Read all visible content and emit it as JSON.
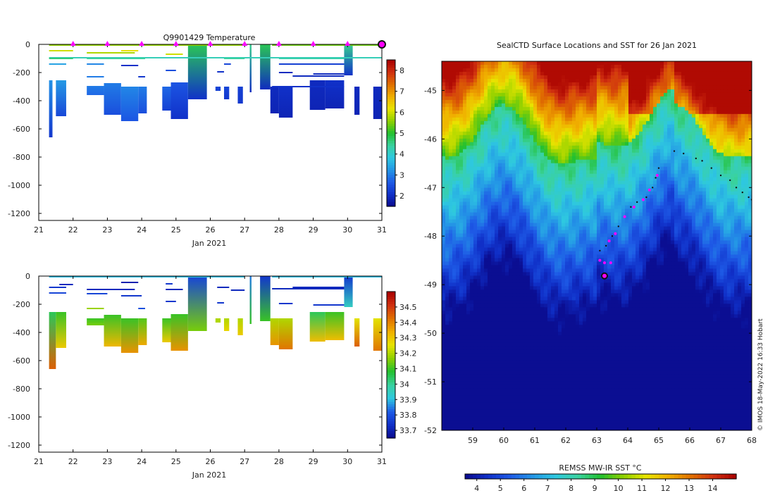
{
  "colors": {
    "temp_scale": [
      "#0a0a8c",
      "#1030c8",
      "#1e5ae6",
      "#2496e6",
      "#2ec8e0",
      "#3ad2a0",
      "#22c030",
      "#8ed000",
      "#e8e400",
      "#f0b000",
      "#e07000",
      "#d03010",
      "#a80000"
    ],
    "sal_scale": [
      "#0a0a8c",
      "#1030c8",
      "#1e5ae6",
      "#2ec8e0",
      "#3ad2a0",
      "#22c030",
      "#8ed000",
      "#e8e400",
      "#f0b000",
      "#e07000",
      "#d03010",
      "#a80000"
    ],
    "track_dots": "#111111",
    "surface_dots": "#ff00ff",
    "current_marker": "#111111"
  },
  "chart_data": [
    {
      "id": "temperature",
      "type": "heatmap",
      "title": "Q9901429  Temperature",
      "xlabel": "Jan 2021",
      "xlim": [
        21,
        31
      ],
      "ylim": [
        -1250,
        0
      ],
      "xticks": [
        21,
        22,
        23,
        24,
        25,
        26,
        27,
        28,
        29,
        30,
        31
      ],
      "yticks": [
        0,
        -200,
        -400,
        -600,
        -800,
        -1000,
        -1200
      ],
      "colorbar": {
        "min": 1.5,
        "max": 8.5,
        "ticks": [
          2,
          3,
          4,
          5,
          6,
          7,
          8
        ]
      },
      "markers_x": [
        22,
        23,
        24,
        25,
        26,
        27,
        28,
        29,
        30
      ],
      "current_x": 31,
      "profiles": [
        {
          "x0": 21.3,
          "x1": 21.4,
          "top": -255,
          "bottom": -660,
          "vtop": 3.2,
          "vbot": 2.2
        },
        {
          "x0": 21.5,
          "x1": 21.8,
          "top": -255,
          "bottom": -510,
          "vtop": 3.3,
          "vbot": 2.4
        },
        {
          "x0": 22.4,
          "x1": 22.9,
          "top": -295,
          "bottom": -360,
          "vtop": 3.0,
          "vbot": 2.8
        },
        {
          "x0": 22.9,
          "x1": 23.4,
          "top": -275,
          "bottom": -500,
          "vtop": 3.0,
          "vbot": 2.5
        },
        {
          "x0": 23.4,
          "x1": 23.9,
          "top": -300,
          "bottom": -545,
          "vtop": 3.1,
          "vbot": 2.6
        },
        {
          "x0": 23.9,
          "x1": 24.15,
          "top": -300,
          "bottom": -490,
          "vtop": 3.0,
          "vbot": 2.5
        },
        {
          "x0": 24.6,
          "x1": 24.85,
          "top": -300,
          "bottom": -470,
          "vtop": 2.8,
          "vbot": 2.3
        },
        {
          "x0": 24.85,
          "x1": 25.35,
          "top": -270,
          "bottom": -530,
          "vtop": 2.6,
          "vbot": 2.1
        },
        {
          "x0": 25.35,
          "x1": 25.9,
          "top": 0,
          "bottom": -390,
          "vtop": 4.8,
          "vbot": 2.1
        },
        {
          "x0": 26.15,
          "x1": 26.3,
          "top": -300,
          "bottom": -330,
          "vtop": 2.4,
          "vbot": 2.3
        },
        {
          "x0": 26.4,
          "x1": 26.55,
          "top": -300,
          "bottom": -390,
          "vtop": 2.4,
          "vbot": 2.2
        },
        {
          "x0": 26.8,
          "x1": 26.95,
          "top": -300,
          "bottom": -420,
          "vtop": 2.3,
          "vbot": 2.2
        },
        {
          "x0": 27.15,
          "x1": 27.2,
          "top": 0,
          "bottom": -340,
          "vtop": 4.5,
          "vbot": 2.0
        },
        {
          "x0": 27.45,
          "x1": 27.75,
          "top": 0,
          "bottom": -320,
          "vtop": 4.8,
          "vbot": 2.0
        },
        {
          "x0": 27.75,
          "x1": 28.0,
          "top": -300,
          "bottom": -490,
          "vtop": 2.0,
          "vbot": 1.9
        },
        {
          "x0": 28.0,
          "x1": 28.4,
          "top": -300,
          "bottom": -520,
          "vtop": 2.1,
          "vbot": 1.9
        },
        {
          "x0": 28.9,
          "x1": 29.35,
          "top": -255,
          "bottom": -465,
          "vtop": 2.0,
          "vbot": 1.9
        },
        {
          "x0": 29.35,
          "x1": 29.9,
          "top": -255,
          "bottom": -455,
          "vtop": 2.1,
          "vbot": 1.9
        },
        {
          "x0": 29.9,
          "x1": 30.15,
          "top": 0,
          "bottom": -220,
          "vtop": 4.5,
          "vbot": 2.1
        },
        {
          "x0": 30.2,
          "x1": 30.35,
          "top": -300,
          "bottom": -500,
          "vtop": 2.0,
          "vbot": 1.9
        },
        {
          "x0": 30.75,
          "x1": 31.0,
          "top": -300,
          "bottom": -530,
          "vtop": 2.0,
          "vbot": 1.9
        }
      ],
      "lines": [
        {
          "x0": 21.3,
          "x1": 27.0,
          "y": -5,
          "v": 5.6
        },
        {
          "x0": 27.8,
          "x1": 31.0,
          "y": -5,
          "v": 5.4
        },
        {
          "x0": 21.3,
          "x1": 22.0,
          "y": -45,
          "v": 6.0
        },
        {
          "x0": 22.4,
          "x1": 23.8,
          "y": -60,
          "v": 5.8
        },
        {
          "x0": 23.4,
          "x1": 23.9,
          "y": -45,
          "v": 6.2
        },
        {
          "x0": 24.7,
          "x1": 25.2,
          "y": -70,
          "v": 6.0
        },
        {
          "x0": 21.3,
          "x1": 31.0,
          "y": -95,
          "v": 4.2
        },
        {
          "x0": 21.3,
          "x1": 22.0,
          "y": -100,
          "v": 4.6
        },
        {
          "x0": 22.4,
          "x1": 24.1,
          "y": -100,
          "v": 4.4
        },
        {
          "x0": 26.4,
          "x1": 27.0,
          "y": -100,
          "v": 4.4
        },
        {
          "x0": 28.0,
          "x1": 29.9,
          "y": -100,
          "v": 4.3
        },
        {
          "x0": 21.3,
          "x1": 21.8,
          "y": -140,
          "v": 3.4
        },
        {
          "x0": 22.4,
          "x1": 22.9,
          "y": -140,
          "v": 3.1
        },
        {
          "x0": 23.4,
          "x1": 23.9,
          "y": -150,
          "v": 2.1
        },
        {
          "x0": 26.4,
          "x1": 26.6,
          "y": -140,
          "v": 2.4
        },
        {
          "x0": 28.0,
          "x1": 29.9,
          "y": -140,
          "v": 2.3
        },
        {
          "x0": 24.7,
          "x1": 25.0,
          "y": -185,
          "v": 2.5
        },
        {
          "x0": 26.2,
          "x1": 26.4,
          "y": -195,
          "v": 2.1
        },
        {
          "x0": 28.0,
          "x1": 28.4,
          "y": -200,
          "v": 2.0
        },
        {
          "x0": 29.0,
          "x1": 29.9,
          "y": -210,
          "v": 2.0
        },
        {
          "x0": 22.4,
          "x1": 22.9,
          "y": -230,
          "v": 3.0
        },
        {
          "x0": 23.9,
          "x1": 24.1,
          "y": -230,
          "v": 2.2
        },
        {
          "x0": 28.4,
          "x1": 29.9,
          "y": -225,
          "v": 2.0
        },
        {
          "x0": 27.8,
          "x1": 29.9,
          "y": -300,
          "v": 2.1
        }
      ]
    },
    {
      "id": "salinity",
      "type": "heatmap",
      "title": "",
      "xlabel": "Jan 2021",
      "xlim": [
        21,
        31
      ],
      "ylim": [
        -1250,
        0
      ],
      "xticks": [
        21,
        22,
        23,
        24,
        25,
        26,
        27,
        28,
        29,
        30,
        31
      ],
      "yticks": [
        0,
        -200,
        -400,
        -600,
        -800,
        -1000,
        -1200
      ],
      "colorbar": {
        "min": 33.65,
        "max": 34.6,
        "ticks": [
          33.7,
          33.8,
          33.9,
          34,
          34.1,
          34.2,
          34.3,
          34.4,
          34.5
        ]
      },
      "profiles": [
        {
          "x0": 21.3,
          "x1": 21.5,
          "top": -255,
          "bottom": -660,
          "vtop": 34.05,
          "vbot": 34.45
        },
        {
          "x0": 21.5,
          "x1": 21.8,
          "top": -255,
          "bottom": -510,
          "vtop": 34.1,
          "vbot": 34.3
        },
        {
          "x0": 22.4,
          "x1": 22.9,
          "top": -300,
          "bottom": -350,
          "vtop": 34.1,
          "vbot": 34.15
        },
        {
          "x0": 22.9,
          "x1": 23.4,
          "top": -275,
          "bottom": -500,
          "vtop": 34.1,
          "vbot": 34.33
        },
        {
          "x0": 23.4,
          "x1": 23.9,
          "top": -300,
          "bottom": -545,
          "vtop": 34.1,
          "vbot": 34.38
        },
        {
          "x0": 23.9,
          "x1": 24.15,
          "top": -300,
          "bottom": -490,
          "vtop": 34.12,
          "vbot": 34.35
        },
        {
          "x0": 24.6,
          "x1": 24.85,
          "top": -300,
          "bottom": -470,
          "vtop": 34.1,
          "vbot": 34.3
        },
        {
          "x0": 24.85,
          "x1": 25.35,
          "top": -270,
          "bottom": -530,
          "vtop": 34.1,
          "vbot": 34.38
        },
        {
          "x0": 25.35,
          "x1": 25.9,
          "top": 0,
          "bottom": -390,
          "vtop": 33.78,
          "vbot": 34.15
        },
        {
          "x0": 26.15,
          "x1": 26.3,
          "top": -300,
          "bottom": -330,
          "vtop": 34.2,
          "vbot": 34.2
        },
        {
          "x0": 26.4,
          "x1": 26.55,
          "top": -300,
          "bottom": -390,
          "vtop": 34.2,
          "vbot": 34.28
        },
        {
          "x0": 26.8,
          "x1": 26.95,
          "top": -300,
          "bottom": -420,
          "vtop": 34.2,
          "vbot": 34.3
        },
        {
          "x0": 27.15,
          "x1": 27.2,
          "top": 0,
          "bottom": -340,
          "vtop": 33.85,
          "vbot": 34.1
        },
        {
          "x0": 27.45,
          "x1": 27.75,
          "top": 0,
          "bottom": -320,
          "vtop": 33.75,
          "vbot": 34.1
        },
        {
          "x0": 27.75,
          "x1": 28.0,
          "top": -300,
          "bottom": -490,
          "vtop": 34.2,
          "vbot": 34.38
        },
        {
          "x0": 28.0,
          "x1": 28.4,
          "top": -300,
          "bottom": -520,
          "vtop": 34.2,
          "vbot": 34.42
        },
        {
          "x0": 28.9,
          "x1": 29.35,
          "top": -255,
          "bottom": -465,
          "vtop": 34.05,
          "vbot": 34.32
        },
        {
          "x0": 29.35,
          "x1": 29.9,
          "top": -255,
          "bottom": -455,
          "vtop": 34.1,
          "vbot": 34.32
        },
        {
          "x0": 29.9,
          "x1": 30.15,
          "top": 0,
          "bottom": -220,
          "vtop": 33.75,
          "vbot": 33.95
        },
        {
          "x0": 30.2,
          "x1": 30.35,
          "top": -300,
          "bottom": -500,
          "vtop": 34.25,
          "vbot": 34.45
        },
        {
          "x0": 30.75,
          "x1": 31.0,
          "top": -300,
          "bottom": -530,
          "vtop": 34.25,
          "vbot": 34.42
        }
      ],
      "lines": [
        {
          "x0": 21.3,
          "x1": 27.0,
          "y": -5,
          "v": 33.9
        },
        {
          "x0": 27.8,
          "x1": 31.0,
          "y": -5,
          "v": 33.9
        },
        {
          "x0": 21.3,
          "x1": 21.8,
          "y": -80,
          "v": 33.75
        },
        {
          "x0": 21.6,
          "x1": 22.0,
          "y": -60,
          "v": 33.72
        },
        {
          "x0": 22.4,
          "x1": 23.8,
          "y": -95,
          "v": 33.72
        },
        {
          "x0": 23.4,
          "x1": 23.9,
          "y": -45,
          "v": 33.7
        },
        {
          "x0": 24.7,
          "x1": 24.9,
          "y": -55,
          "v": 33.75
        },
        {
          "x0": 24.7,
          "x1": 25.2,
          "y": -95,
          "v": 33.72
        },
        {
          "x0": 26.2,
          "x1": 26.55,
          "y": -80,
          "v": 33.72
        },
        {
          "x0": 26.6,
          "x1": 27.0,
          "y": -100,
          "v": 33.72
        },
        {
          "x0": 27.8,
          "x1": 29.9,
          "y": -90,
          "v": 33.72
        },
        {
          "x0": 28.4,
          "x1": 29.9,
          "y": -80,
          "v": 33.72
        },
        {
          "x0": 21.3,
          "x1": 21.8,
          "y": -120,
          "v": 33.78
        },
        {
          "x0": 22.4,
          "x1": 23.0,
          "y": -125,
          "v": 33.78
        },
        {
          "x0": 23.4,
          "x1": 24.0,
          "y": -140,
          "v": 33.75
        },
        {
          "x0": 22.4,
          "x1": 22.9,
          "y": -230,
          "v": 34.18
        },
        {
          "x0": 24.7,
          "x1": 25.0,
          "y": -180,
          "v": 33.75
        },
        {
          "x0": 26.2,
          "x1": 26.4,
          "y": -190,
          "v": 33.75
        },
        {
          "x0": 28.0,
          "x1": 28.4,
          "y": -195,
          "v": 33.75
        },
        {
          "x0": 29.0,
          "x1": 29.9,
          "y": -205,
          "v": 33.75
        },
        {
          "x0": 23.9,
          "x1": 24.1,
          "y": -230,
          "v": 33.8
        }
      ]
    },
    {
      "id": "sst_map",
      "type": "heatmap",
      "title": "SealCTD Surface Locations and SST for 26 Jan 2021",
      "xlim": [
        58,
        68
      ],
      "ylim": [
        -52,
        -44.4
      ],
      "xticks": [
        59,
        60,
        61,
        62,
        63,
        64,
        65,
        66,
        67,
        68
      ],
      "yticks": [
        -45,
        -46,
        -47,
        -48,
        -49,
        -50,
        -51,
        -52
      ],
      "colorbar": {
        "label": "REMSS MW-IR SST °C",
        "min": 3.5,
        "max": 15,
        "ticks": [
          4,
          5,
          6,
          7,
          8,
          9,
          10,
          11,
          12,
          13,
          14
        ]
      },
      "credit": "© IMOS 18-May-2022 16:33 Hobart",
      "track": [
        [
          63.1,
          -48.3
        ],
        [
          63.3,
          -48.2
        ],
        [
          63.5,
          -48.0
        ],
        [
          63.7,
          -47.8
        ],
        [
          63.9,
          -47.6
        ],
        [
          64.1,
          -47.4
        ],
        [
          64.3,
          -47.3
        ],
        [
          64.6,
          -47.2
        ],
        [
          64.8,
          -47.0
        ],
        [
          64.9,
          -46.8
        ],
        [
          65.0,
          -46.6
        ],
        [
          65.5,
          -46.25
        ],
        [
          65.8,
          -46.3
        ],
        [
          66.2,
          -46.4
        ],
        [
          66.4,
          -46.45
        ],
        [
          66.7,
          -46.6
        ],
        [
          67.0,
          -46.75
        ],
        [
          67.3,
          -46.85
        ],
        [
          67.5,
          -47.0
        ],
        [
          67.7,
          -47.1
        ],
        [
          67.9,
          -47.2
        ],
        [
          68.0,
          -47.25
        ]
      ],
      "surface": [
        [
          63.1,
          -48.5
        ],
        [
          63.25,
          -48.55
        ],
        [
          63.45,
          -48.55
        ],
        [
          63.4,
          -48.1
        ],
        [
          63.6,
          -47.95
        ],
        [
          63.9,
          -47.6
        ],
        [
          64.2,
          -47.4
        ],
        [
          64.5,
          -47.25
        ],
        [
          64.7,
          -47.05
        ],
        [
          64.95,
          -46.75
        ]
      ],
      "current": [
        63.25,
        -48.82
      ]
    }
  ]
}
